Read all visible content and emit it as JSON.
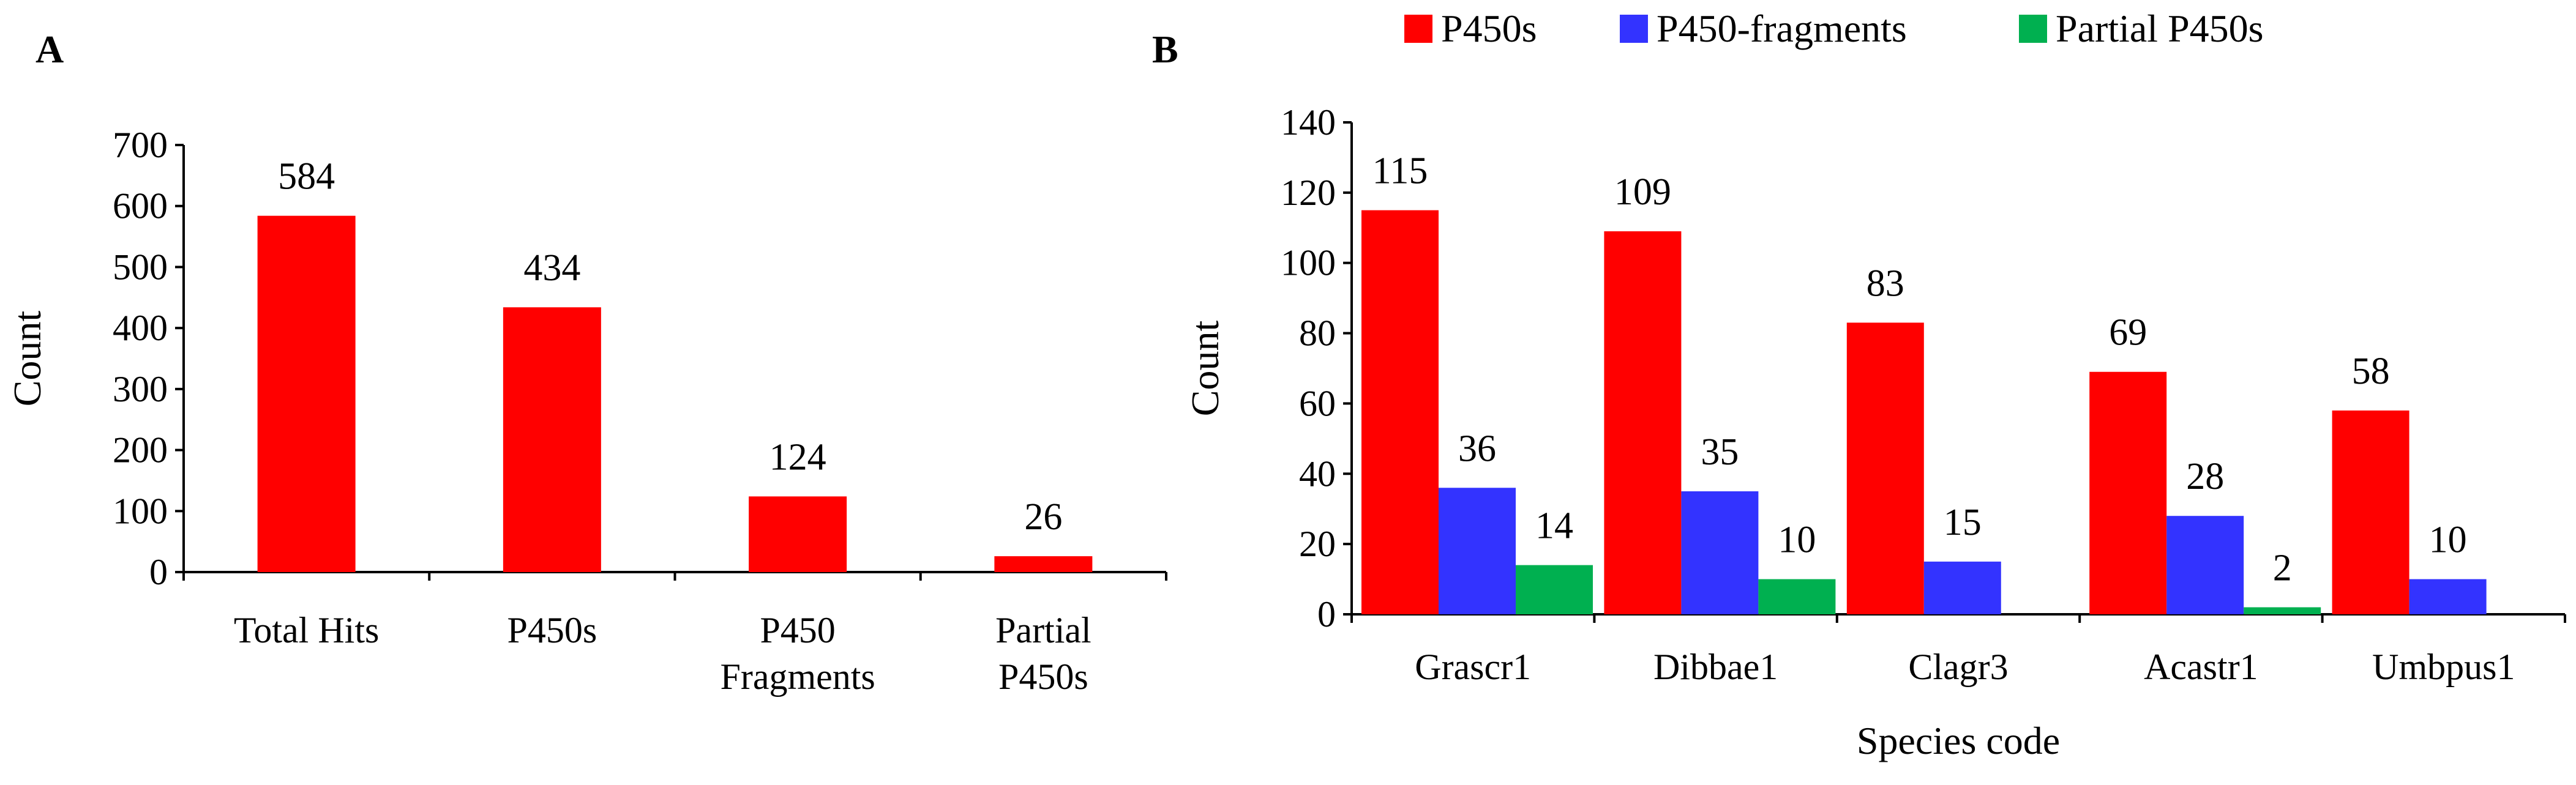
{
  "colors": {
    "P450s": "#ff0000",
    "P450-fragments": "#3333ff",
    "Partial P450s": "#00b050"
  },
  "chart_data": [
    {
      "id": "panel-a",
      "panel_label": "A",
      "type": "bar",
      "title": "",
      "xlabel": "",
      "ylabel": "Count",
      "ylim": [
        0,
        700
      ],
      "yticks": [
        0,
        100,
        200,
        300,
        400,
        500,
        600,
        700
      ],
      "grid": false,
      "categories": [
        [
          "Total Hits"
        ],
        [
          "P450s"
        ],
        [
          "P450",
          "Fragments"
        ],
        [
          "Partial",
          "P450s"
        ]
      ],
      "values": [
        584,
        434,
        124,
        26
      ],
      "data_labels": [
        "584",
        "434",
        "124",
        "26"
      ]
    },
    {
      "id": "panel-b",
      "panel_label": "B",
      "type": "bar",
      "title": "",
      "xlabel": "Species code",
      "ylabel": "Count",
      "ylim": [
        0,
        140
      ],
      "yticks": [
        0,
        20,
        40,
        60,
        80,
        100,
        120,
        140
      ],
      "grid": false,
      "legend_position": "top",
      "categories": [
        "Grascr1",
        "Dibbae1",
        "Clagr3",
        "Acastr1",
        "Umbpus1"
      ],
      "series": [
        {
          "name": "P450s",
          "values": [
            115,
            109,
            83,
            69,
            58
          ],
          "data_labels": [
            "115",
            "109",
            "83",
            "69",
            "58"
          ]
        },
        {
          "name": "P450-fragments",
          "values": [
            36,
            35,
            15,
            28,
            10
          ],
          "data_labels": [
            "36",
            "35",
            "15",
            "28",
            "10"
          ]
        },
        {
          "name": "Partial P450s",
          "values": [
            14,
            10,
            null,
            2,
            null
          ],
          "data_labels": [
            "14",
            "10",
            null,
            "2",
            null
          ]
        }
      ]
    }
  ]
}
